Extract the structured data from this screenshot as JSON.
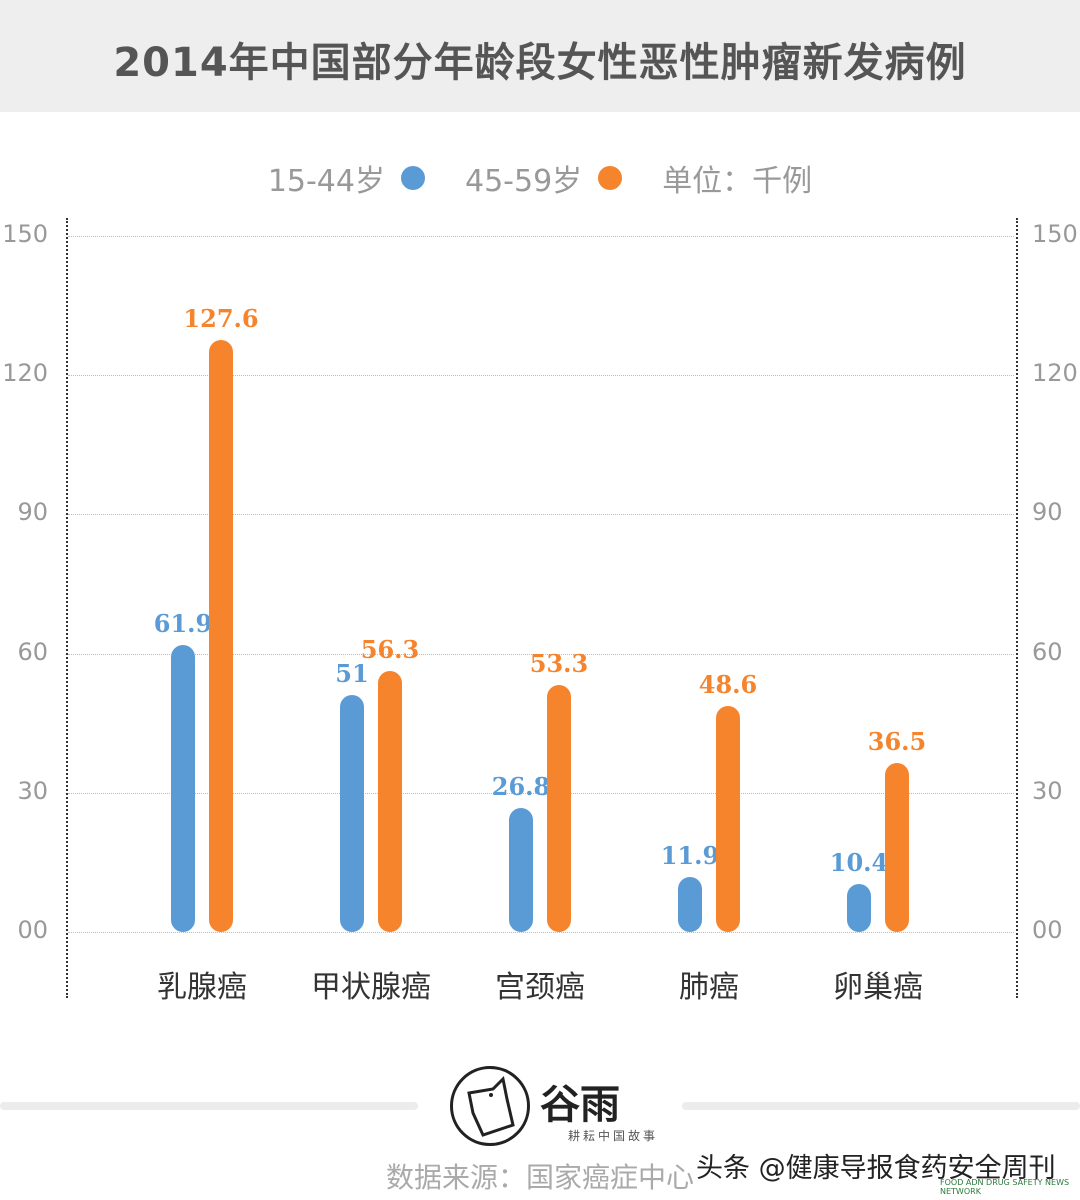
{
  "title": "2014年中国部分年龄段女性恶性肿瘤新发病例",
  "legend": {
    "items": [
      {
        "label": "15-44岁",
        "color": "#5b9bd5"
      },
      {
        "label": "45-59岁",
        "color": "#f5842d"
      }
    ],
    "unit": "单位：千例"
  },
  "axes": {
    "left_ticks": [
      "150",
      "120",
      "90",
      "60",
      "30",
      "00"
    ],
    "right_ticks": [
      "150",
      "120",
      "90",
      "60",
      "30",
      "00"
    ]
  },
  "categories": [
    "乳腺癌",
    "甲状腺癌",
    "宫颈癌",
    "肺癌",
    "卵巢癌"
  ],
  "value_labels": {
    "young": [
      "61.9",
      "51",
      "26.8",
      "11.9",
      "10.4"
    ],
    "mid": [
      "127.6",
      "56.3",
      "53.3",
      "48.6",
      "36.5"
    ]
  },
  "footer": {
    "logo_name": "谷雨",
    "logo_tagline": "耕耘中国故事",
    "source": "数据来源：国家癌症中心",
    "watermark": "头条 @健康导报食药安全周刊",
    "watermark_en": "FOOD ADN DRUG SAFETY NEWS NETWORK"
  },
  "chart_data": {
    "type": "bar",
    "title": "2014年中国部分年龄段女性恶性肿瘤新发病例",
    "categories": [
      "乳腺癌",
      "甲状腺癌",
      "宫颈癌",
      "肺癌",
      "卵巢癌"
    ],
    "series": [
      {
        "name": "15-44岁",
        "color": "#5b9bd5",
        "values": [
          61.9,
          51,
          26.8,
          11.9,
          10.4
        ]
      },
      {
        "name": "45-59岁",
        "color": "#f5842d",
        "values": [
          127.6,
          56.3,
          53.3,
          48.6,
          36.5
        ]
      }
    ],
    "xlabel": "",
    "ylabel": "单位：千例",
    "ylim": [
      0,
      150
    ],
    "yticks": [
      0,
      30,
      60,
      90,
      120,
      150
    ],
    "grid": true,
    "legend_position": "top",
    "source": "数据来源：国家癌症中心"
  }
}
